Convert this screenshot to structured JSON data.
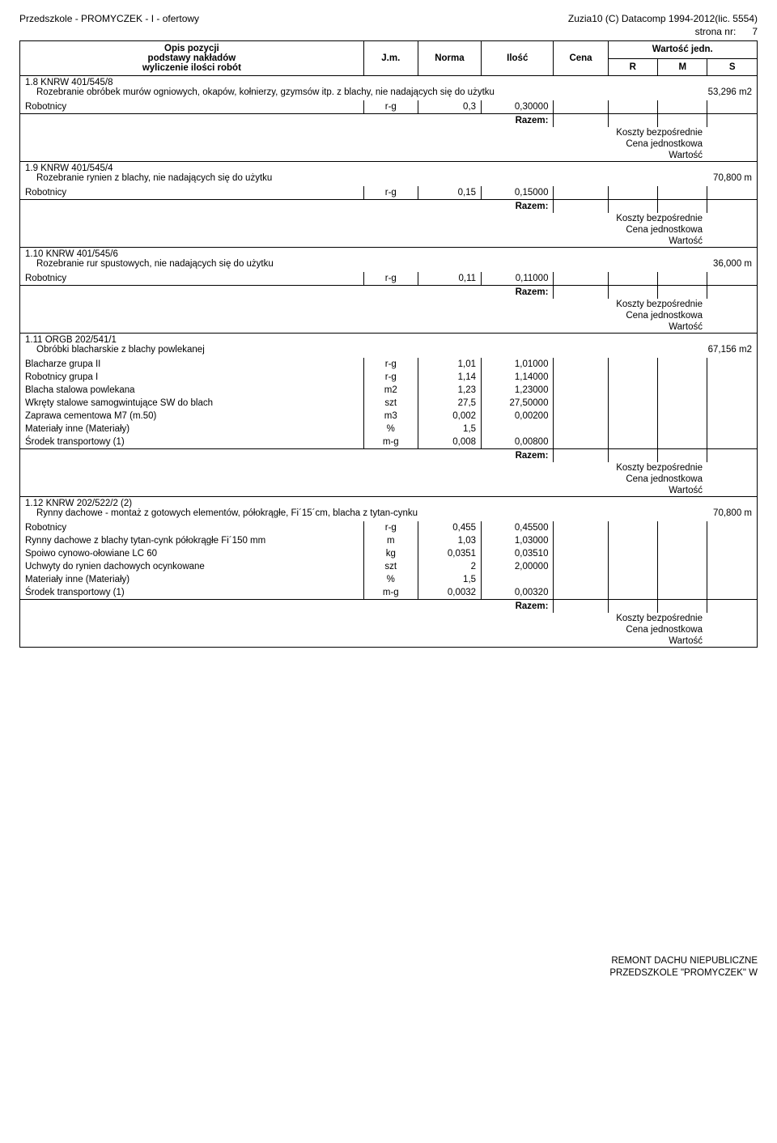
{
  "header": {
    "left": "Przedszkole - PROMYCZEK - I - ofertowy",
    "right_top": "Zuzia10 (C) Datacomp 1994-2012(lic. 5554)",
    "right_page_label": "strona nr:",
    "right_page_num": "7"
  },
  "table_head": {
    "opis1": "Opis pozycji",
    "opis2": "podstawy nakładów",
    "opis3": "wyliczenie ilości robót",
    "jm": "J.m.",
    "norma": "Norma",
    "ilosc": "Ilość",
    "cena": "Cena",
    "wartosc": "Wartość jedn.",
    "r": "R",
    "m": "M",
    "s": "S"
  },
  "labels": {
    "razem": "Razem:",
    "koszty": "Koszty bezpośrednie",
    "cena_j": "Cena jednostkowa",
    "wartosc": "Wartość"
  },
  "sections": [
    {
      "code": "1.8 KNRW 401/545/8",
      "desc": "Rozebranie obróbek murów ogniowych, okapów, kołnierzy, gzymsów itp. z blachy, nie nadających się do użytku",
      "qty": "53,296 m2",
      "rows": [
        {
          "label": "Robotnicy",
          "jm": "r-g",
          "norma": "0,3",
          "ilosc": "0,30000"
        }
      ]
    },
    {
      "code": "1.9 KNRW 401/545/4",
      "desc": "Rozebranie rynien z blachy, nie nadających się do użytku",
      "qty": "70,800 m",
      "rows": [
        {
          "label": "Robotnicy",
          "jm": "r-g",
          "norma": "0,15",
          "ilosc": "0,15000"
        }
      ]
    },
    {
      "code": "1.10 KNRW 401/545/6",
      "desc": "Rozebranie rur spustowych, nie nadających się do użytku",
      "qty": "36,000 m",
      "rows": [
        {
          "label": "Robotnicy",
          "jm": "r-g",
          "norma": "0,11",
          "ilosc": "0,11000"
        }
      ]
    },
    {
      "code": "1.11 ORGB 202/541/1",
      "desc": "Obróbki blacharskie z blachy powlekanej",
      "qty": "67,156 m2",
      "rows": [
        {
          "label": "Blacharze grupa II",
          "jm": "r-g",
          "norma": "1,01",
          "ilosc": "1,01000"
        },
        {
          "label": "Robotnicy grupa I",
          "jm": "r-g",
          "norma": "1,14",
          "ilosc": "1,14000"
        },
        {
          "label": "Blacha stalowa powlekana",
          "jm": "m2",
          "norma": "1,23",
          "ilosc": "1,23000"
        },
        {
          "label": "Wkręty stalowe samogwintujące SW do blach",
          "jm": "szt",
          "norma": "27,5",
          "ilosc": "27,50000"
        },
        {
          "label": "Zaprawa cementowa M7 (m.50)",
          "jm": "m3",
          "norma": "0,002",
          "ilosc": "0,00200"
        },
        {
          "label": "Materiały inne (Materiały)",
          "jm": "%",
          "norma": "1,5",
          "ilosc": ""
        },
        {
          "label": "Środek transportowy (1)",
          "jm": "m-g",
          "norma": "0,008",
          "ilosc": "0,00800"
        }
      ]
    },
    {
      "code": "1.12 KNRW 202/522/2 (2)",
      "desc": "Rynny dachowe - montaż z gotowych elementów, półokrągłe, Fi´15´cm, blacha z tytan-cynku",
      "qty": "70,800 m",
      "rows": [
        {
          "label": "Robotnicy",
          "jm": "r-g",
          "norma": "0,455",
          "ilosc": "0,45500"
        },
        {
          "label": "Rynny dachowe z blachy tytan-cynk półokrągłe Fi´150 mm",
          "jm": "m",
          "norma": "1,03",
          "ilosc": "1,03000"
        },
        {
          "label": "Spoiwo cynowo-ołowiane LC 60",
          "jm": "kg",
          "norma": "0,0351",
          "ilosc": "0,03510"
        },
        {
          "label": "Uchwyty do rynien dachowych ocynkowane",
          "jm": "szt",
          "norma": "2",
          "ilosc": "2,00000"
        },
        {
          "label": "Materiały inne (Materiały)",
          "jm": "%",
          "norma": "1,5",
          "ilosc": ""
        },
        {
          "label": "Środek transportowy (1)",
          "jm": "m-g",
          "norma": "0,0032",
          "ilosc": "0,00320"
        }
      ]
    }
  ],
  "footer": {
    "line1": "REMONT DACHU  NIEPUBLICZNE",
    "line2": "PRZEDSZKOLE \"PROMYCZEK\"  W"
  }
}
